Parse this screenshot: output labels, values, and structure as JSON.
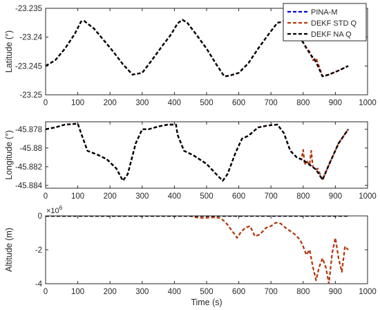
{
  "chart_data": [
    {
      "type": "line",
      "ylabel": "Latitude (°)",
      "xlim": [
        0,
        1000
      ],
      "ylim": [
        -23.25,
        -23.235
      ],
      "xticks": [
        0,
        100,
        200,
        300,
        400,
        500,
        600,
        700,
        800,
        900,
        1000
      ],
      "yticks": [
        -23.235,
        -23.24,
        -23.245,
        -23.25
      ],
      "ytick_labels": [
        "-23.235",
        "-23.24",
        "-23.245",
        "-23.25"
      ],
      "legend": {
        "placement": "top-right",
        "entries": [
          "PINA-M",
          "DEKF STD Q",
          "DEKF NA Q"
        ]
      },
      "series": [
        {
          "name": "PINA-M",
          "color": "#0000e0",
          "x": [
            0,
            30,
            60,
            90,
            110,
            120,
            150,
            180,
            210,
            240,
            270,
            300,
            330,
            360,
            390,
            410,
            425,
            440,
            470,
            500,
            530,
            555,
            570,
            600,
            630,
            660,
            690,
            720,
            740,
            760,
            790,
            820,
            840,
            860,
            880,
            910,
            940
          ],
          "y": [
            -23.245,
            -23.244,
            -23.242,
            -23.2395,
            -23.2373,
            -23.2372,
            -23.2385,
            -23.2405,
            -23.2425,
            -23.2447,
            -23.2465,
            -23.2462,
            -23.244,
            -23.2417,
            -23.2395,
            -23.2376,
            -23.237,
            -23.2375,
            -23.2397,
            -23.242,
            -23.2447,
            -23.2468,
            -23.2467,
            -23.2462,
            -23.2445,
            -23.242,
            -23.2397,
            -23.2375,
            -23.2373,
            -23.2381,
            -23.24,
            -23.2428,
            -23.2443,
            -23.2468,
            -23.2465,
            -23.2458,
            -23.245
          ]
        },
        {
          "name": "DEKF STD Q",
          "color": "#b5380f",
          "x": [
            0,
            30,
            60,
            90,
            110,
            120,
            150,
            180,
            210,
            240,
            270,
            300,
            330,
            360,
            390,
            410,
            425,
            440,
            470,
            500,
            530,
            555,
            570,
            600,
            630,
            660,
            690,
            720,
            740,
            760,
            790,
            800,
            810,
            820,
            830,
            840,
            850,
            860,
            880,
            910,
            940
          ],
          "y": [
            -23.245,
            -23.244,
            -23.242,
            -23.2395,
            -23.2373,
            -23.2372,
            -23.2385,
            -23.2405,
            -23.2425,
            -23.2447,
            -23.2465,
            -23.2462,
            -23.244,
            -23.2417,
            -23.2395,
            -23.2376,
            -23.237,
            -23.2375,
            -23.2397,
            -23.242,
            -23.2447,
            -23.2468,
            -23.2467,
            -23.2462,
            -23.2445,
            -23.242,
            -23.2397,
            -23.2375,
            -23.2373,
            -23.2381,
            -23.24,
            -23.241,
            -23.242,
            -23.2425,
            -23.244,
            -23.2436,
            -23.2452,
            -23.2468,
            -23.2465,
            -23.2458,
            -23.245
          ]
        },
        {
          "name": "DEKF NA Q",
          "color": "#000000",
          "x": [
            0,
            30,
            60,
            90,
            110,
            120,
            150,
            180,
            210,
            240,
            270,
            300,
            330,
            360,
            390,
            410,
            425,
            440,
            470,
            500,
            530,
            555,
            570,
            600,
            630,
            660,
            690,
            720,
            740,
            760,
            790,
            820,
            840,
            860,
            880,
            910,
            940
          ],
          "y": [
            -23.245,
            -23.244,
            -23.242,
            -23.2395,
            -23.2373,
            -23.2372,
            -23.2385,
            -23.2405,
            -23.2425,
            -23.2447,
            -23.2465,
            -23.2462,
            -23.244,
            -23.2417,
            -23.2395,
            -23.2376,
            -23.237,
            -23.2375,
            -23.2397,
            -23.242,
            -23.2447,
            -23.2468,
            -23.2467,
            -23.2462,
            -23.2445,
            -23.242,
            -23.2397,
            -23.2375,
            -23.2373,
            -23.2381,
            -23.24,
            -23.2428,
            -23.2443,
            -23.2468,
            -23.2465,
            -23.2458,
            -23.245
          ]
        }
      ]
    },
    {
      "type": "line",
      "ylabel": "Longitude (°)",
      "xlim": [
        0,
        1000
      ],
      "ylim": [
        -45.8843,
        -45.8772
      ],
      "xticks": [
        0,
        100,
        200,
        300,
        400,
        500,
        600,
        700,
        800,
        900,
        1000
      ],
      "yticks": [
        -45.878,
        -45.88,
        -45.882,
        -45.884
      ],
      "ytick_labels": [
        "-45.878",
        "-45.88",
        "-45.882",
        "-45.884"
      ],
      "series": [
        {
          "name": "PINA-M",
          "color": "#0000e0",
          "x": [
            0,
            30,
            60,
            100,
            110,
            130,
            160,
            190,
            220,
            240,
            255,
            280,
            300,
            320,
            350,
            380,
            405,
            410,
            430,
            460,
            500,
            530,
            550,
            565,
            590,
            610,
            630,
            660,
            690,
            720,
            740,
            760,
            780,
            800,
            820,
            840,
            860,
            880,
            910,
            940
          ],
          "y": [
            -45.878,
            -45.8778,
            -45.8775,
            -45.8774,
            -45.8784,
            -45.8803,
            -45.8807,
            -45.8812,
            -45.8822,
            -45.8835,
            -45.8828,
            -45.8795,
            -45.878,
            -45.878,
            -45.8777,
            -45.8775,
            -45.8775,
            -45.8786,
            -45.8803,
            -45.8808,
            -45.8817,
            -45.8828,
            -45.8835,
            -45.8828,
            -45.8805,
            -45.879,
            -45.8787,
            -45.8778,
            -45.8776,
            -45.8775,
            -45.8784,
            -45.8803,
            -45.881,
            -45.8813,
            -45.8818,
            -45.8823,
            -45.8834,
            -45.8818,
            -45.8795,
            -45.878
          ]
        },
        {
          "name": "DEKF STD Q",
          "color": "#b5380f",
          "x": [
            0,
            30,
            60,
            100,
            110,
            130,
            160,
            190,
            220,
            240,
            255,
            280,
            300,
            320,
            350,
            380,
            405,
            410,
            430,
            460,
            500,
            530,
            550,
            565,
            590,
            610,
            630,
            660,
            690,
            720,
            740,
            760,
            780,
            795,
            800,
            805,
            810,
            815,
            820,
            825,
            830,
            835,
            840,
            845,
            850,
            860,
            880,
            910,
            940
          ],
          "y": [
            -45.878,
            -45.8778,
            -45.8775,
            -45.8774,
            -45.8784,
            -45.8803,
            -45.8807,
            -45.8812,
            -45.8822,
            -45.8835,
            -45.8828,
            -45.8795,
            -45.878,
            -45.878,
            -45.8777,
            -45.8775,
            -45.8775,
            -45.8786,
            -45.8803,
            -45.8808,
            -45.8817,
            -45.8828,
            -45.8835,
            -45.8828,
            -45.8805,
            -45.879,
            -45.8787,
            -45.8778,
            -45.8776,
            -45.8775,
            -45.8784,
            -45.8803,
            -45.881,
            -45.8812,
            -45.8802,
            -45.8818,
            -45.8813,
            -45.8816,
            -45.8818,
            -45.8803,
            -45.882,
            -45.8822,
            -45.8823,
            -45.8822,
            -45.8826,
            -45.8834,
            -45.8818,
            -45.8795,
            -45.878
          ]
        },
        {
          "name": "DEKF NA Q",
          "color": "#000000",
          "x": [
            0,
            30,
            60,
            100,
            110,
            130,
            160,
            190,
            220,
            240,
            255,
            280,
            300,
            320,
            350,
            380,
            405,
            410,
            430,
            460,
            500,
            530,
            550,
            565,
            590,
            610,
            630,
            660,
            690,
            720,
            740,
            760,
            780,
            800,
            820,
            840,
            860,
            880,
            910,
            940
          ],
          "y": [
            -45.878,
            -45.8778,
            -45.8775,
            -45.8774,
            -45.8784,
            -45.8803,
            -45.8807,
            -45.8812,
            -45.8822,
            -45.8835,
            -45.8828,
            -45.8795,
            -45.878,
            -45.878,
            -45.8777,
            -45.8775,
            -45.8775,
            -45.8786,
            -45.8803,
            -45.8808,
            -45.8817,
            -45.8828,
            -45.8835,
            -45.8828,
            -45.8805,
            -45.879,
            -45.8787,
            -45.8778,
            -45.8776,
            -45.8775,
            -45.8784,
            -45.8803,
            -45.881,
            -45.8813,
            -45.8818,
            -45.8823,
            -45.8834,
            -45.8818,
            -45.8795,
            -45.878
          ]
        }
      ]
    },
    {
      "type": "line",
      "ylabel": "Altitude (m)",
      "xlabel": "Time (s)",
      "exponent_label": "×10",
      "exponent_power": "6",
      "xlim": [
        0,
        1000
      ],
      "ylim": [
        -4000000,
        0
      ],
      "xticks": [
        0,
        100,
        200,
        300,
        400,
        500,
        600,
        700,
        800,
        900,
        1000
      ],
      "yticks": [
        0,
        -2000000,
        -4000000
      ],
      "ytick_labels": [
        "0",
        "-2",
        "-4"
      ],
      "series": [
        {
          "name": "PINA-M",
          "color": "#0000e0",
          "x": [
            0,
            940
          ],
          "y": [
            0,
            0
          ]
        },
        {
          "name": "DEKF STD Q",
          "color": "#b5380f",
          "x": [
            0,
            450,
            470,
            490,
            510,
            530,
            545,
            560,
            580,
            595,
            605,
            620,
            635,
            650,
            665,
            685,
            700,
            715,
            730,
            745,
            760,
            775,
            790,
            800,
            810,
            820,
            830,
            840,
            850,
            860,
            870,
            880,
            890,
            900,
            910,
            920,
            930,
            940
          ],
          "y": [
            0,
            0,
            -100000,
            -120000,
            -100000,
            -80000,
            -150000,
            -400000,
            -900000,
            -1300000,
            -1000000,
            -700000,
            -600000,
            -1200000,
            -1100000,
            -700000,
            -600000,
            -400000,
            -450000,
            -700000,
            -900000,
            -1100000,
            -1400000,
            -1800000,
            -2300000,
            -2000000,
            -3000000,
            -3800000,
            -3000000,
            -2500000,
            -3000000,
            -4000000,
            -2200000,
            -1300000,
            -2500000,
            -3300000,
            -1800000,
            -2000000
          ]
        },
        {
          "name": "DEKF NA Q",
          "color": "#000000",
          "x": [
            0,
            940
          ],
          "y": [
            0,
            0
          ]
        }
      ]
    }
  ]
}
